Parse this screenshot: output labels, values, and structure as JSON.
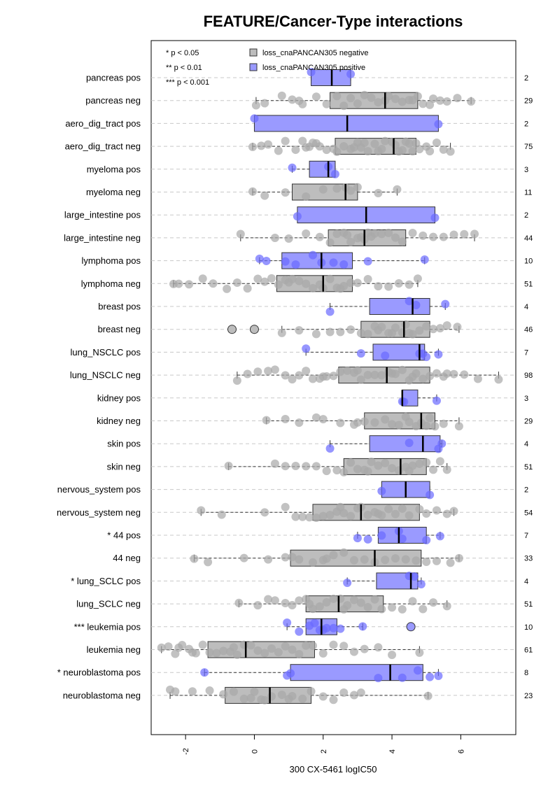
{
  "chart_data": {
    "type": "boxplot",
    "title": "FEATURE/Cancer-Type interactions",
    "xlabel": "300 CX-5461 logIC50",
    "orientation": "horizontal",
    "xlim": [
      -3.0,
      7.6
    ],
    "xticks": [
      -2,
      0,
      2,
      4,
      6
    ],
    "xtick_labels": [
      "-2",
      "0",
      "2",
      "4",
      "6"
    ],
    "colors": {
      "negative": "#bdbdbd",
      "positive": "#9a9aff",
      "neg_point": "#a8a8a8",
      "pos_point": "#6a6aff"
    },
    "legend": {
      "significance": [
        "* p < 0.05",
        "** p < 0.01",
        "*** p < 0.001"
      ],
      "series": [
        {
          "name": "loss_cnaPANCAN305 negative",
          "color": "#bdbdbd"
        },
        {
          "name": "loss_cnaPANCAN305 positive",
          "color": "#9a9aff"
        }
      ]
    },
    "rows": [
      {
        "label": "pancreas pos",
        "n": "2",
        "group": "pos",
        "stats": [
          1.65,
          1.65,
          2.25,
          2.8,
          2.8
        ],
        "points": [
          1.65,
          2.8
        ],
        "outliers": []
      },
      {
        "label": "pancreas neg",
        "n": "29",
        "group": "neg",
        "stats": [
          0.05,
          2.2,
          3.8,
          4.75,
          6.3
        ],
        "points": [
          0.05,
          0.3,
          0.8,
          1.1,
          1.4,
          1.8,
          2.1,
          2.4,
          2.6,
          2.8,
          3.0,
          3.2,
          3.4,
          3.6,
          3.8,
          3.9,
          4.1,
          4.3,
          4.5,
          4.6,
          4.75,
          4.9,
          5.1,
          5.2,
          5.4,
          5.6,
          5.9,
          6.3,
          1.3
        ],
        "outliers": []
      },
      {
        "label": "aero_dig_tract pos",
        "n": "2",
        "group": "pos",
        "stats": [
          0.0,
          0.0,
          2.7,
          5.35,
          5.35
        ],
        "points": [
          0.0,
          5.35
        ],
        "outliers": []
      },
      {
        "label": "aero_dig_tract neg",
        "n": "75",
        "group": "neg",
        "stats": [
          -0.05,
          2.35,
          4.05,
          4.7,
          5.7
        ],
        "points": [
          -0.05,
          0.2,
          0.4,
          0.7,
          0.9,
          1.2,
          1.4,
          1.6,
          1.8,
          1.9,
          2.1,
          2.3,
          2.4,
          2.6,
          2.8,
          3.0,
          3.1,
          3.3,
          3.5,
          3.7,
          3.8,
          4.0,
          4.1,
          4.2,
          4.4,
          4.5,
          4.7,
          4.8,
          5.0,
          5.1,
          5.3,
          5.5,
          5.7,
          3.2,
          2.9,
          4.3,
          4.6,
          3.6,
          1.5,
          1.7
        ],
        "outliers": []
      },
      {
        "label": "myeloma pos",
        "n": "3",
        "group": "pos",
        "stats": [
          1.1,
          1.6,
          2.15,
          2.35,
          2.35
        ],
        "points": [
          1.1,
          2.15,
          2.35
        ],
        "outliers": []
      },
      {
        "label": "myeloma neg",
        "n": "11",
        "group": "neg",
        "stats": [
          -0.05,
          1.1,
          2.65,
          3.0,
          4.15
        ],
        "points": [
          -0.05,
          0.3,
          0.9,
          1.5,
          2.0,
          2.4,
          2.65,
          2.8,
          3.0,
          3.6,
          4.15
        ],
        "outliers": []
      },
      {
        "label": "large_intestine pos",
        "n": "2",
        "group": "pos",
        "stats": [
          1.25,
          1.25,
          3.25,
          5.25,
          5.25
        ],
        "points": [
          1.25,
          5.25
        ],
        "outliers": []
      },
      {
        "label": "large_intestine neg",
        "n": "44",
        "group": "neg",
        "stats": [
          -0.4,
          2.15,
          3.2,
          4.4,
          6.4
        ],
        "points": [
          -0.4,
          0.6,
          1.0,
          1.5,
          1.9,
          2.2,
          2.4,
          2.6,
          2.8,
          3.0,
          3.1,
          3.2,
          3.3,
          3.5,
          3.7,
          3.9,
          4.1,
          4.3,
          4.6,
          4.9,
          5.2,
          5.5,
          5.8,
          6.1,
          6.4,
          2.7,
          3.4
        ],
        "outliers": []
      },
      {
        "label": "lymphoma pos",
        "n": "10",
        "group": "pos",
        "stats": [
          0.15,
          0.8,
          1.95,
          2.85,
          4.95
        ],
        "points": [
          0.15,
          0.35,
          0.9,
          1.2,
          1.7,
          1.95,
          2.3,
          2.6,
          3.3,
          4.95
        ],
        "outliers": []
      },
      {
        "label": "lymphoma neg",
        "n": "51",
        "group": "neg",
        "stats": [
          -2.35,
          0.65,
          2.0,
          2.85,
          4.75
        ],
        "points": [
          -2.35,
          -2.2,
          -1.9,
          -1.5,
          -1.2,
          -0.8,
          -0.5,
          -0.2,
          0.1,
          0.3,
          0.5,
          0.7,
          0.9,
          1.1,
          1.3,
          1.5,
          1.7,
          1.9,
          2.0,
          2.2,
          2.4,
          2.6,
          2.8,
          3.0,
          3.3,
          3.6,
          3.9,
          4.2,
          4.5,
          4.75,
          1.0,
          2.5
        ],
        "outliers": []
      },
      {
        "label": "breast pos",
        "n": "4",
        "group": "pos",
        "stats": [
          2.2,
          3.35,
          4.6,
          5.1,
          5.55
        ],
        "points": [
          2.2,
          4.5,
          4.7,
          5.55
        ],
        "outliers": []
      },
      {
        "label": "breast neg",
        "n": "46",
        "group": "neg",
        "stats": [
          0.8,
          3.1,
          4.35,
          5.1,
          5.95
        ],
        "points": [
          0.8,
          1.3,
          1.8,
          2.2,
          2.5,
          2.8,
          3.1,
          3.3,
          3.5,
          3.7,
          3.9,
          4.1,
          4.3,
          4.4,
          4.6,
          4.8,
          5.0,
          5.2,
          5.4,
          5.6,
          5.9,
          3.6,
          4.0,
          4.5
        ],
        "outliers": [
          -0.65,
          0.0
        ]
      },
      {
        "label": "lung_NSCLC pos",
        "n": "7",
        "group": "pos",
        "stats": [
          1.5,
          3.45,
          4.8,
          4.95,
          5.35
        ],
        "points": [
          1.5,
          3.1,
          3.8,
          4.8,
          4.9,
          5.0,
          5.35
        ],
        "outliers": []
      },
      {
        "label": "lung_NSCLC neg",
        "n": "98",
        "group": "neg",
        "stats": [
          -0.5,
          2.45,
          3.85,
          5.1,
          7.1
        ],
        "points": [
          -0.5,
          -0.2,
          0.1,
          0.4,
          0.6,
          0.9,
          1.1,
          1.3,
          1.5,
          1.7,
          1.9,
          2.1,
          2.3,
          2.5,
          2.7,
          2.9,
          3.1,
          3.3,
          3.5,
          3.7,
          3.9,
          4.1,
          4.3,
          4.5,
          4.7,
          4.9,
          5.1,
          5.3,
          5.5,
          5.8,
          6.1,
          6.5,
          7.1,
          2.0,
          3.0,
          4.0,
          4.6,
          5.6
        ],
        "outliers": []
      },
      {
        "label": "kidney pos",
        "n": "3",
        "group": "pos",
        "stats": [
          4.3,
          4.3,
          4.3,
          4.75,
          5.3
        ],
        "points": [
          4.3,
          4.35,
          5.3
        ],
        "outliers": []
      },
      {
        "label": "kidney neg",
        "n": "29",
        "group": "neg",
        "stats": [
          0.35,
          3.2,
          4.85,
          5.25,
          5.95
        ],
        "points": [
          0.35,
          0.9,
          1.3,
          1.8,
          2.0,
          2.5,
          2.9,
          3.2,
          3.5,
          3.8,
          4.0,
          4.2,
          4.5,
          4.7,
          4.85,
          5.0,
          5.1,
          5.25,
          5.5,
          5.95,
          3.0,
          4.4
        ],
        "outliers": []
      },
      {
        "label": "skin pos",
        "n": "4",
        "group": "pos",
        "stats": [
          2.2,
          3.35,
          4.9,
          5.4,
          5.45
        ],
        "points": [
          2.2,
          4.5,
          5.35,
          5.45
        ],
        "outliers": []
      },
      {
        "label": "skin neg",
        "n": "51",
        "group": "neg",
        "stats": [
          -0.75,
          2.6,
          4.25,
          5.0,
          5.6
        ],
        "points": [
          -0.75,
          0.6,
          0.9,
          1.2,
          1.5,
          1.8,
          2.1,
          2.4,
          2.6,
          2.8,
          3.0,
          3.2,
          3.4,
          3.6,
          3.8,
          4.0,
          4.2,
          4.4,
          4.6,
          4.8,
          5.0,
          5.2,
          5.4,
          5.6,
          3.3,
          4.5
        ],
        "outliers": []
      },
      {
        "label": "nervous_system pos",
        "n": "2",
        "group": "pos",
        "stats": [
          3.7,
          3.7,
          4.4,
          5.1,
          5.1
        ],
        "points": [
          3.7,
          5.1
        ],
        "outliers": []
      },
      {
        "label": "nervous_system neg",
        "n": "54",
        "group": "neg",
        "stats": [
          -1.55,
          1.7,
          3.1,
          4.8,
          5.8
        ],
        "points": [
          -1.55,
          -0.95,
          0.3,
          0.9,
          1.2,
          1.4,
          1.6,
          1.8,
          2.0,
          2.2,
          2.4,
          2.6,
          2.8,
          3.0,
          3.1,
          3.3,
          3.5,
          3.7,
          3.9,
          4.1,
          4.3,
          4.5,
          4.8,
          5.0,
          5.3,
          5.6,
          5.8,
          2.5,
          3.6
        ],
        "outliers": []
      },
      {
        "label": "* 44 pos",
        "n": "7",
        "group": "pos",
        "stats": [
          3.0,
          3.6,
          4.2,
          5.0,
          5.4
        ],
        "points": [
          3.0,
          3.3,
          3.7,
          4.2,
          4.3,
          5.0,
          5.4
        ],
        "outliers": []
      },
      {
        "label": "44 neg",
        "n": "33",
        "group": "neg",
        "stats": [
          -1.75,
          1.05,
          3.5,
          4.85,
          5.95
        ],
        "points": [
          -1.75,
          -1.35,
          -0.3,
          0.4,
          0.9,
          1.3,
          1.7,
          2.0,
          2.3,
          2.6,
          2.9,
          3.2,
          3.5,
          3.8,
          4.1,
          4.4,
          4.7,
          5.0,
          5.3,
          5.7,
          5.95,
          1.1,
          2.1
        ],
        "outliers": []
      },
      {
        "label": "* lung_SCLC pos",
        "n": "4",
        "group": "pos",
        "stats": [
          2.7,
          3.55,
          4.55,
          4.75,
          4.85
        ],
        "points": [
          2.7,
          4.5,
          4.65,
          4.85
        ],
        "outliers": []
      },
      {
        "label": "lung_SCLC neg",
        "n": "51",
        "group": "neg",
        "stats": [
          -0.45,
          1.5,
          2.45,
          3.75,
          5.6
        ],
        "points": [
          -0.45,
          0.1,
          0.4,
          0.6,
          0.9,
          1.1,
          1.3,
          1.5,
          1.7,
          1.9,
          2.1,
          2.3,
          2.5,
          2.7,
          2.9,
          3.1,
          3.3,
          3.5,
          3.7,
          4.0,
          4.3,
          4.6,
          4.9,
          5.2,
          5.6,
          1.6,
          2.6
        ],
        "outliers": []
      },
      {
        "label": "*** leukemia pos",
        "n": "10",
        "group": "pos",
        "stats": [
          0.95,
          1.5,
          1.95,
          2.4,
          3.15
        ],
        "points": [
          0.95,
          1.3,
          1.6,
          1.75,
          1.9,
          2.0,
          2.1,
          2.3,
          2.5,
          3.15
        ],
        "outliers": [
          4.55
        ]
      },
      {
        "label": "leukemia neg",
        "n": "61",
        "group": "neg",
        "stats": [
          -2.7,
          -1.35,
          -0.25,
          1.75,
          4.8
        ],
        "points": [
          -2.7,
          -2.5,
          -2.3,
          -2.1,
          -1.9,
          -1.7,
          -1.5,
          -1.3,
          -1.1,
          -0.9,
          -0.7,
          -0.5,
          -0.3,
          -0.1,
          0.1,
          0.3,
          0.5,
          0.7,
          0.9,
          1.1,
          1.3,
          1.5,
          1.7,
          2.0,
          2.3,
          2.6,
          2.9,
          3.2,
          3.6,
          4.0,
          4.8,
          -2.2,
          -1.8,
          -0.6
        ],
        "outliers": []
      },
      {
        "label": "* neuroblastoma pos",
        "n": "8",
        "group": "pos",
        "stats": [
          -1.45,
          1.05,
          3.95,
          4.9,
          5.35
        ],
        "points": [
          -1.45,
          0.95,
          1.05,
          3.6,
          4.3,
          4.75,
          5.1,
          5.35
        ],
        "outliers": []
      },
      {
        "label": "neuroblastoma neg",
        "n": "23",
        "group": "neg",
        "stats": [
          -2.45,
          -0.85,
          0.45,
          1.65,
          5.05
        ],
        "points": [
          -2.45,
          -2.3,
          -1.8,
          -1.3,
          -0.9,
          -0.6,
          -0.3,
          0.0,
          0.3,
          0.5,
          0.8,
          1.1,
          1.4,
          1.65,
          2.0,
          2.3,
          2.6,
          2.9,
          3.1,
          5.05,
          0.2,
          -0.1,
          1.0
        ],
        "outliers": []
      }
    ]
  }
}
